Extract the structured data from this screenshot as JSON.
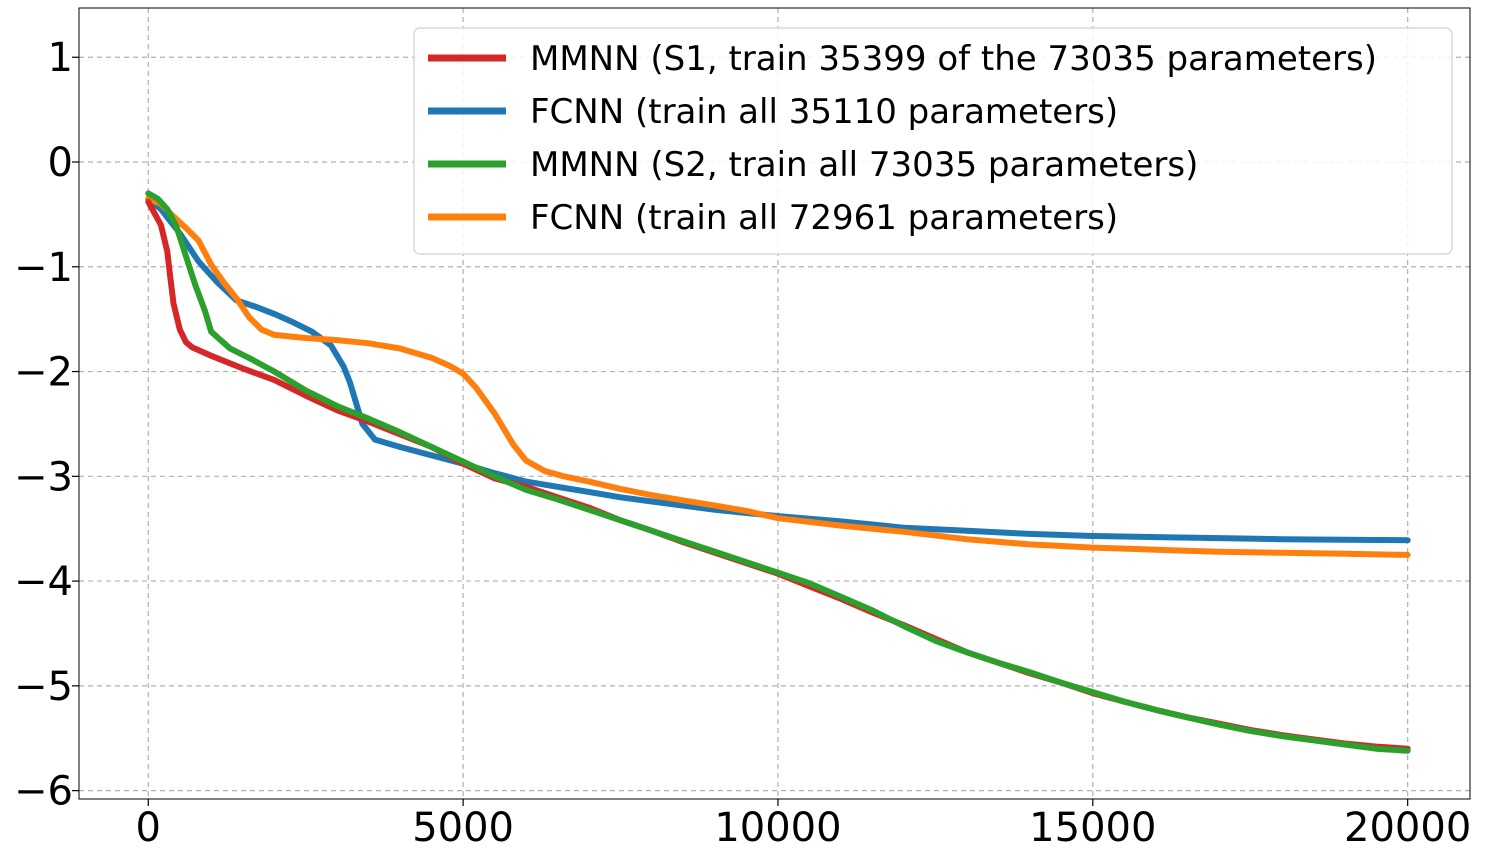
{
  "chart_data": {
    "type": "line",
    "title": "",
    "xlabel": "",
    "ylabel": "",
    "xlim": [
      -1100,
      20990
    ],
    "ylim": [
      -6.08,
      1.47
    ],
    "x_ticks": [
      0,
      5000,
      10000,
      15000,
      20000
    ],
    "x_tick_labels": [
      "0",
      "5000",
      "10000",
      "15000",
      "20000"
    ],
    "y_ticks": [
      1,
      0,
      -1,
      -2,
      -3,
      -4,
      -5,
      -6
    ],
    "y_tick_labels": [
      "1",
      "0",
      "−1",
      "−2",
      "−3",
      "−4",
      "−5",
      "−6"
    ],
    "grid": true,
    "legend_position": "top-right",
    "series": [
      {
        "name": "MMNN (S1, train 35399 of the 73035 parameters)",
        "color": "#d62728",
        "x": [
          0,
          200,
          300,
          350,
          400,
          500,
          600,
          700,
          1000,
          1500,
          2000,
          2500,
          3000,
          3500,
          4000,
          4500,
          5000,
          5500,
          6000,
          6500,
          7000,
          7500,
          8000,
          8500,
          9000,
          9500,
          10000,
          10500,
          11000,
          11500,
          12000,
          12500,
          13000,
          13500,
          14000,
          14500,
          15000,
          15500,
          16000,
          16500,
          17000,
          17500,
          18000,
          18500,
          19000,
          19500,
          20000
        ],
        "y": [
          -0.38,
          -0.6,
          -0.85,
          -1.1,
          -1.35,
          -1.6,
          -1.72,
          -1.77,
          -1.85,
          -1.97,
          -2.08,
          -2.23,
          -2.37,
          -2.48,
          -2.6,
          -2.72,
          -2.88,
          -3.02,
          -3.1,
          -3.2,
          -3.3,
          -3.42,
          -3.52,
          -3.63,
          -3.73,
          -3.83,
          -3.93,
          -4.05,
          -4.17,
          -4.3,
          -4.42,
          -4.55,
          -4.68,
          -4.78,
          -4.88,
          -4.97,
          -5.07,
          -5.15,
          -5.23,
          -5.3,
          -5.36,
          -5.42,
          -5.47,
          -5.51,
          -5.55,
          -5.58,
          -5.6
        ]
      },
      {
        "name": "FCNN (train all 35110 parameters)",
        "color": "#1f77b4",
        "x": [
          0,
          200,
          500,
          800,
          1100,
          1400,
          1700,
          2000,
          2300,
          2600,
          2900,
          3100,
          3200,
          3300,
          3400,
          3600,
          4000,
          4500,
          5000,
          5500,
          6000,
          6500,
          7000,
          7500,
          8000,
          8500,
          9000,
          9500,
          10000,
          11000,
          12000,
          13000,
          14000,
          15000,
          16000,
          17000,
          18000,
          19000,
          20000
        ],
        "y": [
          -0.35,
          -0.45,
          -0.68,
          -0.95,
          -1.15,
          -1.32,
          -1.38,
          -1.45,
          -1.53,
          -1.62,
          -1.75,
          -1.95,
          -2.1,
          -2.3,
          -2.5,
          -2.65,
          -2.72,
          -2.8,
          -2.88,
          -2.97,
          -3.05,
          -3.1,
          -3.15,
          -3.2,
          -3.24,
          -3.28,
          -3.32,
          -3.35,
          -3.38,
          -3.43,
          -3.49,
          -3.52,
          -3.55,
          -3.57,
          -3.58,
          -3.59,
          -3.6,
          -3.605,
          -3.61
        ]
      },
      {
        "name": "MMNN (S2, train all 73035 parameters)",
        "color": "#2ca02c",
        "x": [
          0,
          150,
          300,
          450,
          600,
          750,
          900,
          1000,
          1300,
          1600,
          2000,
          2500,
          3000,
          3500,
          4000,
          4500,
          5000,
          5500,
          6000,
          6500,
          7000,
          7500,
          8000,
          8500,
          9000,
          9500,
          10000,
          10500,
          11000,
          11500,
          12000,
          12500,
          13000,
          13500,
          14000,
          14500,
          15000,
          15500,
          16000,
          16500,
          17000,
          17500,
          18000,
          18500,
          19000,
          19500,
          20000
        ],
        "y": [
          -0.3,
          -0.35,
          -0.45,
          -0.62,
          -0.9,
          -1.18,
          -1.42,
          -1.62,
          -1.78,
          -1.87,
          -2.0,
          -2.18,
          -2.33,
          -2.45,
          -2.58,
          -2.72,
          -2.86,
          -3.0,
          -3.13,
          -3.22,
          -3.32,
          -3.42,
          -3.52,
          -3.62,
          -3.72,
          -3.82,
          -3.92,
          -4.02,
          -4.15,
          -4.28,
          -4.43,
          -4.57,
          -4.68,
          -4.78,
          -4.87,
          -4.97,
          -5.06,
          -5.15,
          -5.23,
          -5.3,
          -5.37,
          -5.43,
          -5.48,
          -5.52,
          -5.56,
          -5.6,
          -5.62
        ]
      },
      {
        "name": "FCNN (train all 72961 parameters)",
        "color": "#ff7f0e",
        "x": [
          0,
          200,
          400,
          600,
          800,
          1000,
          1200,
          1400,
          1600,
          1800,
          2000,
          2500,
          3000,
          3500,
          4000,
          4500,
          4800,
          5000,
          5200,
          5500,
          5800,
          6000,
          6300,
          6600,
          7000,
          7500,
          8000,
          8500,
          9000,
          9500,
          10000,
          11000,
          12000,
          13000,
          14000,
          15000,
          16000,
          17000,
          18000,
          19000,
          20000
        ],
        "y": [
          -0.35,
          -0.4,
          -0.52,
          -0.63,
          -0.75,
          -0.98,
          -1.15,
          -1.3,
          -1.48,
          -1.6,
          -1.65,
          -1.68,
          -1.7,
          -1.73,
          -1.78,
          -1.87,
          -1.95,
          -2.02,
          -2.15,
          -2.4,
          -2.7,
          -2.85,
          -2.95,
          -3.0,
          -3.05,
          -3.12,
          -3.18,
          -3.23,
          -3.28,
          -3.33,
          -3.4,
          -3.47,
          -3.53,
          -3.6,
          -3.65,
          -3.68,
          -3.7,
          -3.72,
          -3.73,
          -3.74,
          -3.75
        ]
      }
    ]
  }
}
